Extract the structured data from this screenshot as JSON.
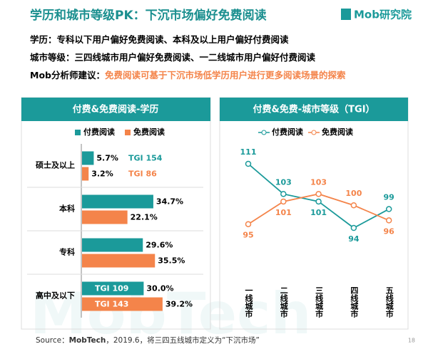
{
  "header": {
    "title": "学历和城市等级PK：下沉市场偏好免费阅读",
    "logo": "Mob研究院"
  },
  "bullets": [
    {
      "label": "学历：",
      "text": "专科以下用户偏好免费阅读、本科及以上用户偏好付费阅读"
    },
    {
      "label": "城市等级：",
      "text": "三四线城市用户偏好免费阅读、一二线城市用户偏好付费阅读"
    },
    {
      "label": "Mob分析师建议：",
      "text": "免费阅读可基于下沉市场低学历用户进行更多阅读场景的探索"
    }
  ],
  "watermark": "MobTech",
  "chart_data": [
    {
      "type": "hbar",
      "title": "付费&免费阅读-学历",
      "categories": [
        "硕士及以上",
        "本科",
        "专科",
        "高中及以下"
      ],
      "series": [
        {
          "name": "付费阅读",
          "color": "#1b9a9a",
          "values": [
            5.7,
            34.7,
            29.6,
            30
          ],
          "value_labels": [
            "5.7%",
            "34.7%",
            "29.6%",
            "30.0%"
          ],
          "notes": [
            "TGI 154",
            null,
            null,
            "TGI 109"
          ]
        },
        {
          "name": "免费阅读",
          "color": "#f4844a",
          "values": [
            3.2,
            22.1,
            35.5,
            39.2
          ],
          "value_labels": [
            "3.2%",
            "22.1%",
            "35.5%",
            "39.2%"
          ],
          "notes": [
            "TGI 86",
            null,
            null,
            "TGI 143"
          ]
        }
      ]
    },
    {
      "type": "line",
      "title": "付费&免费-城市等级（TGI）",
      "categories": [
        "一线城市",
        "二线城市",
        "三线城市",
        "四线城市",
        "五线城市"
      ],
      "series": [
        {
          "name": "付费阅读",
          "color": "#1b9a9a",
          "values": [
            111,
            103,
            101,
            94,
            99
          ]
        },
        {
          "name": "免费阅读",
          "color": "#f4844a",
          "values": [
            95,
            101,
            103,
            100,
            96
          ]
        }
      ]
    }
  ],
  "footer": {
    "source_label": "Source：",
    "source_name": "MobTech",
    "source_text": "，2019.6，将三四五线城市定义为“下沉市场”",
    "page": "18"
  }
}
